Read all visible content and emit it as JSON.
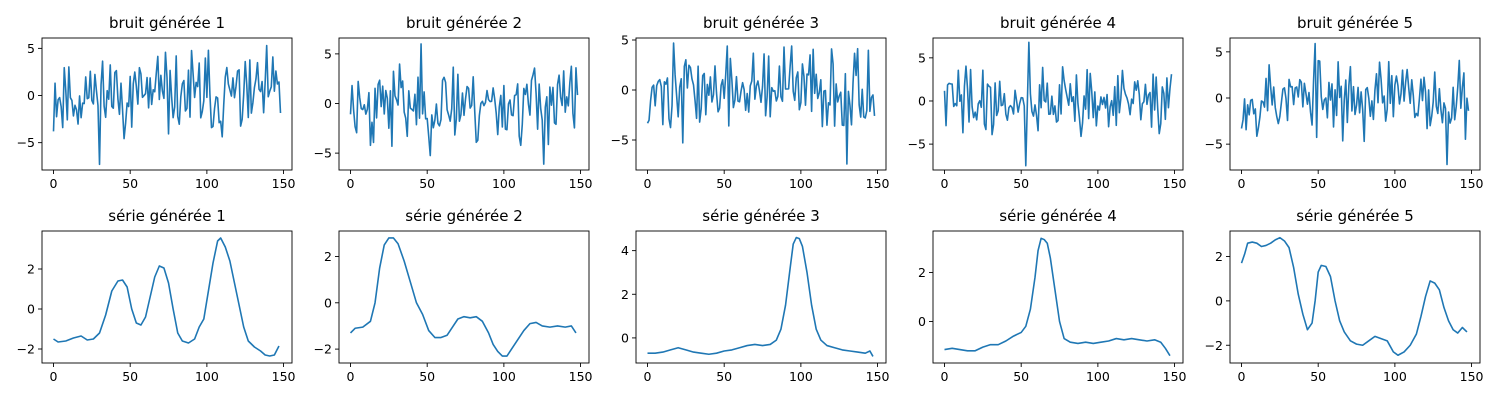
{
  "chart_data": [
    {
      "type": "line",
      "title": "bruit générée 1",
      "xticks": [
        0,
        50,
        100,
        150
      ],
      "yticks": [
        -5,
        0,
        5
      ],
      "xlim": [
        -7.5,
        155.5
      ],
      "ylim": [
        -7.9,
        6.1
      ],
      "color": "#1f77b4",
      "shape": "noise",
      "seed": 11,
      "ymin": -7.3,
      "ymax": 5.3,
      "n": 149
    },
    {
      "type": "line",
      "title": "bruit générée 2",
      "xticks": [
        0,
        50,
        100,
        150
      ],
      "yticks": [
        -5,
        0,
        5
      ],
      "xlim": [
        -7.5,
        155.5
      ],
      "ylim": [
        -6.7,
        6.6
      ],
      "color": "#1f77b4",
      "shape": "noise",
      "seed": 23,
      "ymin": -6.1,
      "ymax": 6.0,
      "n": 149
    },
    {
      "type": "line",
      "title": "bruit générée 3",
      "xticks": [
        0,
        50,
        100,
        150
      ],
      "yticks": [
        -5,
        0,
        5
      ],
      "xlim": [
        -7.5,
        155.5
      ],
      "ylim": [
        -8.0,
        5.2
      ],
      "color": "#1f77b4",
      "shape": "noise",
      "seed": 37,
      "ymin": -7.4,
      "ymax": 4.7,
      "n": 149
    },
    {
      "type": "line",
      "title": "bruit générée 4",
      "xticks": [
        0,
        50,
        100,
        150
      ],
      "yticks": [
        -5,
        0,
        5
      ],
      "xlim": [
        -7.5,
        155.5
      ],
      "ylim": [
        -8.0,
        7.3
      ],
      "color": "#1f77b4",
      "shape": "noise",
      "seed": 41,
      "ymin": -7.5,
      "ymax": 6.8,
      "n": 149
    },
    {
      "type": "line",
      "title": "bruit générée 5",
      "xticks": [
        0,
        50,
        100,
        150
      ],
      "yticks": [
        -5,
        0,
        5
      ],
      "xlim": [
        -7.5,
        155.5
      ],
      "ylim": [
        -7.8,
        6.5
      ],
      "color": "#1f77b4",
      "shape": "noise",
      "seed": 53,
      "ymin": -7.2,
      "ymax": 5.9,
      "n": 149
    },
    {
      "type": "line",
      "title": "série générée 1",
      "xticks": [
        0,
        50,
        100,
        150
      ],
      "yticks": [
        -2,
        0,
        2
      ],
      "xlim": [
        -7.5,
        155.5
      ],
      "ylim": [
        -2.7,
        3.9
      ],
      "color": "#1f77b4",
      "shape": "series",
      "points": [
        [
          0,
          -1.5
        ],
        [
          3,
          -1.65
        ],
        [
          8,
          -1.6
        ],
        [
          13,
          -1.45
        ],
        [
          18,
          -1.35
        ],
        [
          22,
          -1.55
        ],
        [
          26,
          -1.5
        ],
        [
          30,
          -1.2
        ],
        [
          34,
          -0.3
        ],
        [
          38,
          0.9
        ],
        [
          42,
          1.4
        ],
        [
          45,
          1.45
        ],
        [
          48,
          1.1
        ],
        [
          51,
          0.0
        ],
        [
          54,
          -0.7
        ],
        [
          57,
          -0.8
        ],
        [
          60,
          -0.4
        ],
        [
          63,
          0.6
        ],
        [
          66,
          1.6
        ],
        [
          69,
          2.15
        ],
        [
          72,
          2.05
        ],
        [
          75,
          1.3
        ],
        [
          78,
          0.0
        ],
        [
          81,
          -1.2
        ],
        [
          84,
          -1.6
        ],
        [
          88,
          -1.7
        ],
        [
          92,
          -1.5
        ],
        [
          95,
          -0.9
        ],
        [
          98,
          -0.5
        ],
        [
          101,
          0.9
        ],
        [
          104,
          2.3
        ],
        [
          107,
          3.4
        ],
        [
          109,
          3.55
        ],
        [
          112,
          3.1
        ],
        [
          115,
          2.4
        ],
        [
          118,
          1.3
        ],
        [
          121,
          0.2
        ],
        [
          124,
          -0.9
        ],
        [
          127,
          -1.6
        ],
        [
          131,
          -1.9
        ],
        [
          135,
          -2.1
        ],
        [
          138,
          -2.3
        ],
        [
          141,
          -2.35
        ],
        [
          144,
          -2.3
        ],
        [
          147,
          -1.85
        ]
      ]
    },
    {
      "type": "line",
      "title": "série générée 2",
      "xticks": [
        0,
        50,
        100,
        150
      ],
      "yticks": [
        -2,
        0,
        2
      ],
      "xlim": [
        -7.5,
        155.5
      ],
      "ylim": [
        -2.6,
        3.1
      ],
      "color": "#1f77b4",
      "shape": "series",
      "points": [
        [
          0,
          -1.3
        ],
        [
          3,
          -1.1
        ],
        [
          8,
          -1.05
        ],
        [
          13,
          -0.8
        ],
        [
          16,
          0.0
        ],
        [
          19,
          1.5
        ],
        [
          22,
          2.5
        ],
        [
          25,
          2.8
        ],
        [
          28,
          2.8
        ],
        [
          31,
          2.55
        ],
        [
          35,
          1.8
        ],
        [
          39,
          0.9
        ],
        [
          43,
          0.0
        ],
        [
          47,
          -0.5
        ],
        [
          51,
          -1.2
        ],
        [
          55,
          -1.5
        ],
        [
          59,
          -1.5
        ],
        [
          63,
          -1.4
        ],
        [
          67,
          -1.0
        ],
        [
          70,
          -0.7
        ],
        [
          74,
          -0.6
        ],
        [
          78,
          -0.65
        ],
        [
          82,
          -0.6
        ],
        [
          86,
          -0.8
        ],
        [
          90,
          -1.3
        ],
        [
          93,
          -1.8
        ],
        [
          96,
          -2.1
        ],
        [
          99,
          -2.3
        ],
        [
          102,
          -2.3
        ],
        [
          105,
          -2.0
        ],
        [
          109,
          -1.6
        ],
        [
          113,
          -1.2
        ],
        [
          117,
          -0.9
        ],
        [
          121,
          -0.85
        ],
        [
          125,
          -1.0
        ],
        [
          130,
          -1.05
        ],
        [
          135,
          -1.0
        ],
        [
          140,
          -1.05
        ],
        [
          144,
          -1.0
        ],
        [
          147,
          -1.3
        ]
      ]
    },
    {
      "type": "line",
      "title": "série générée 3",
      "xticks": [
        0,
        50,
        100,
        150
      ],
      "yticks": [
        0,
        2,
        4
      ],
      "xlim": [
        -7.5,
        155.5
      ],
      "ylim": [
        -1.15,
        4.9
      ],
      "color": "#1f77b4",
      "shape": "series",
      "points": [
        [
          0,
          -0.7
        ],
        [
          5,
          -0.7
        ],
        [
          10,
          -0.65
        ],
        [
          15,
          -0.55
        ],
        [
          20,
          -0.45
        ],
        [
          25,
          -0.55
        ],
        [
          30,
          -0.65
        ],
        [
          35,
          -0.7
        ],
        [
          40,
          -0.75
        ],
        [
          45,
          -0.7
        ],
        [
          50,
          -0.6
        ],
        [
          55,
          -0.55
        ],
        [
          60,
          -0.45
        ],
        [
          65,
          -0.35
        ],
        [
          70,
          -0.3
        ],
        [
          75,
          -0.35
        ],
        [
          80,
          -0.3
        ],
        [
          84,
          -0.1
        ],
        [
          87,
          0.4
        ],
        [
          90,
          1.5
        ],
        [
          93,
          3.2
        ],
        [
          95,
          4.3
        ],
        [
          97,
          4.6
        ],
        [
          99,
          4.55
        ],
        [
          101,
          4.2
        ],
        [
          104,
          3.0
        ],
        [
          107,
          1.5
        ],
        [
          110,
          0.4
        ],
        [
          113,
          -0.1
        ],
        [
          117,
          -0.35
        ],
        [
          122,
          -0.45
        ],
        [
          127,
          -0.55
        ],
        [
          132,
          -0.6
        ],
        [
          137,
          -0.65
        ],
        [
          142,
          -0.7
        ],
        [
          145,
          -0.6
        ],
        [
          147,
          -0.85
        ]
      ]
    },
    {
      "type": "line",
      "title": "série générée 4",
      "xticks": [
        0,
        50,
        100,
        150
      ],
      "yticks": [
        0,
        2
      ],
      "xlim": [
        -7.5,
        155.5
      ],
      "ylim": [
        -1.7,
        3.7
      ],
      "color": "#1f77b4",
      "shape": "series",
      "points": [
        [
          0,
          -1.15
        ],
        [
          5,
          -1.1
        ],
        [
          10,
          -1.15
        ],
        [
          15,
          -1.2
        ],
        [
          20,
          -1.2
        ],
        [
          25,
          -1.05
        ],
        [
          30,
          -0.95
        ],
        [
          35,
          -0.95
        ],
        [
          40,
          -0.8
        ],
        [
          45,
          -0.6
        ],
        [
          50,
          -0.45
        ],
        [
          53,
          -0.2
        ],
        [
          56,
          0.5
        ],
        [
          59,
          1.8
        ],
        [
          61,
          2.9
        ],
        [
          63,
          3.4
        ],
        [
          65,
          3.35
        ],
        [
          67,
          3.2
        ],
        [
          69,
          2.6
        ],
        [
          72,
          1.3
        ],
        [
          75,
          0.0
        ],
        [
          78,
          -0.7
        ],
        [
          82,
          -0.85
        ],
        [
          87,
          -0.9
        ],
        [
          92,
          -0.85
        ],
        [
          97,
          -0.9
        ],
        [
          102,
          -0.85
        ],
        [
          107,
          -0.8
        ],
        [
          112,
          -0.7
        ],
        [
          117,
          -0.75
        ],
        [
          122,
          -0.7
        ],
        [
          127,
          -0.75
        ],
        [
          132,
          -0.8
        ],
        [
          137,
          -0.75
        ],
        [
          141,
          -0.85
        ],
        [
          144,
          -1.1
        ],
        [
          147,
          -1.4
        ]
      ]
    },
    {
      "type": "line",
      "title": "série générée 5",
      "xticks": [
        0,
        50,
        100,
        150
      ],
      "yticks": [
        -2,
        0,
        2
      ],
      "xlim": [
        -7.5,
        155.5
      ],
      "ylim": [
        -2.8,
        3.15
      ],
      "color": "#1f77b4",
      "shape": "series",
      "points": [
        [
          0,
          1.7
        ],
        [
          2,
          2.1
        ],
        [
          4,
          2.6
        ],
        [
          7,
          2.65
        ],
        [
          10,
          2.6
        ],
        [
          13,
          2.45
        ],
        [
          16,
          2.5
        ],
        [
          19,
          2.6
        ],
        [
          22,
          2.75
        ],
        [
          25,
          2.85
        ],
        [
          28,
          2.7
        ],
        [
          31,
          2.4
        ],
        [
          34,
          1.5
        ],
        [
          37,
          0.3
        ],
        [
          40,
          -0.6
        ],
        [
          43,
          -1.3
        ],
        [
          46,
          -1.0
        ],
        [
          48,
          0.0
        ],
        [
          50,
          1.3
        ],
        [
          52,
          1.6
        ],
        [
          55,
          1.55
        ],
        [
          58,
          1.1
        ],
        [
          61,
          0.0
        ],
        [
          64,
          -0.9
        ],
        [
          67,
          -1.4
        ],
        [
          71,
          -1.8
        ],
        [
          75,
          -1.95
        ],
        [
          79,
          -2.0
        ],
        [
          83,
          -1.8
        ],
        [
          87,
          -1.6
        ],
        [
          91,
          -1.7
        ],
        [
          95,
          -1.8
        ],
        [
          99,
          -2.3
        ],
        [
          102,
          -2.45
        ],
        [
          106,
          -2.3
        ],
        [
          110,
          -2.0
        ],
        [
          114,
          -1.5
        ],
        [
          117,
          -0.7
        ],
        [
          120,
          0.2
        ],
        [
          123,
          0.9
        ],
        [
          126,
          0.8
        ],
        [
          129,
          0.5
        ],
        [
          132,
          -0.3
        ],
        [
          135,
          -0.9
        ],
        [
          138,
          -1.3
        ],
        [
          141,
          -1.45
        ],
        [
          144,
          -1.2
        ],
        [
          147,
          -1.4
        ]
      ]
    }
  ]
}
